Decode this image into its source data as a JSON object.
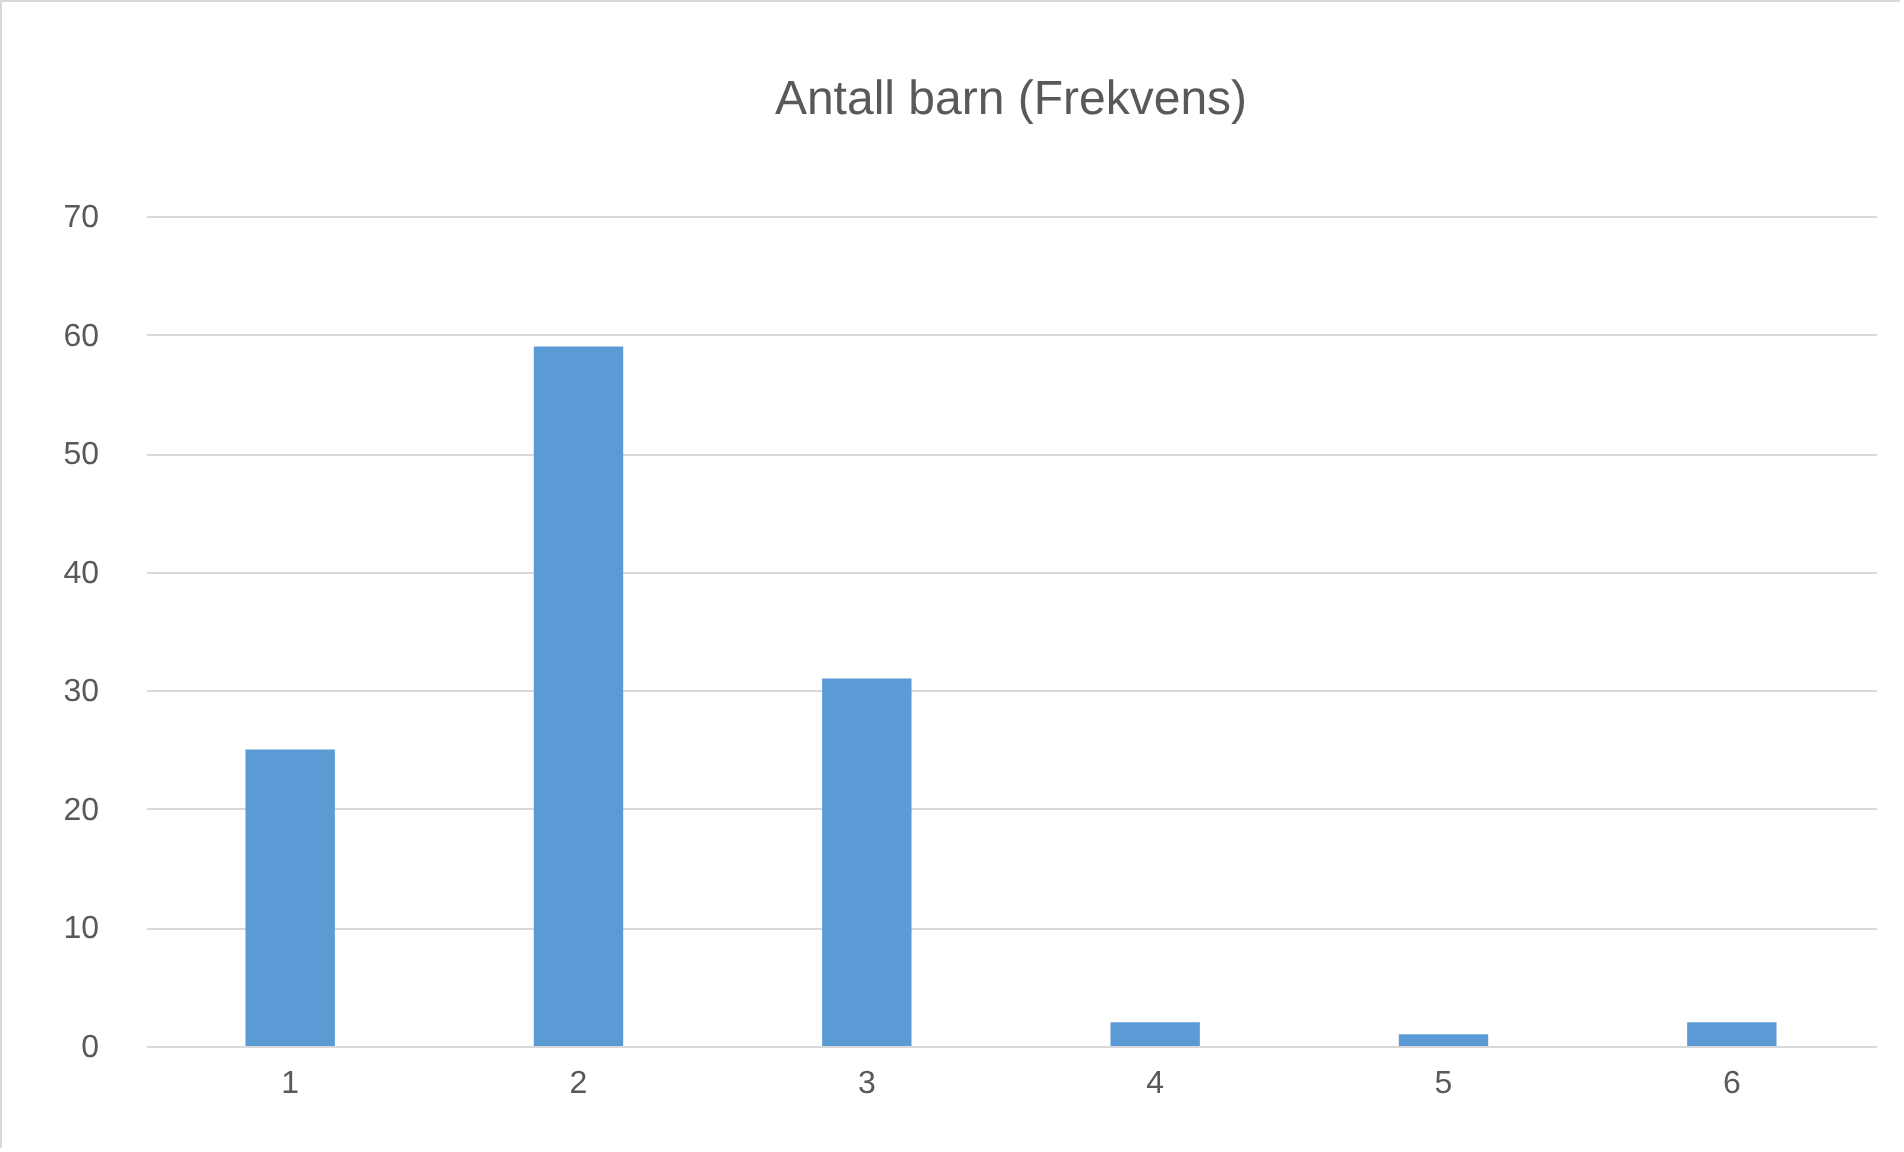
{
  "chart_data": {
    "type": "bar",
    "title": "Antall barn (Frekvens)",
    "categories": [
      "1",
      "2",
      "3",
      "4",
      "5",
      "6"
    ],
    "values": [
      25,
      59,
      31,
      2,
      1,
      2
    ],
    "color": "#5b9bd5",
    "ylim": [
      0,
      70
    ],
    "yticks": [
      0,
      10,
      20,
      30,
      40,
      50,
      60,
      70
    ],
    "grid": "y"
  }
}
